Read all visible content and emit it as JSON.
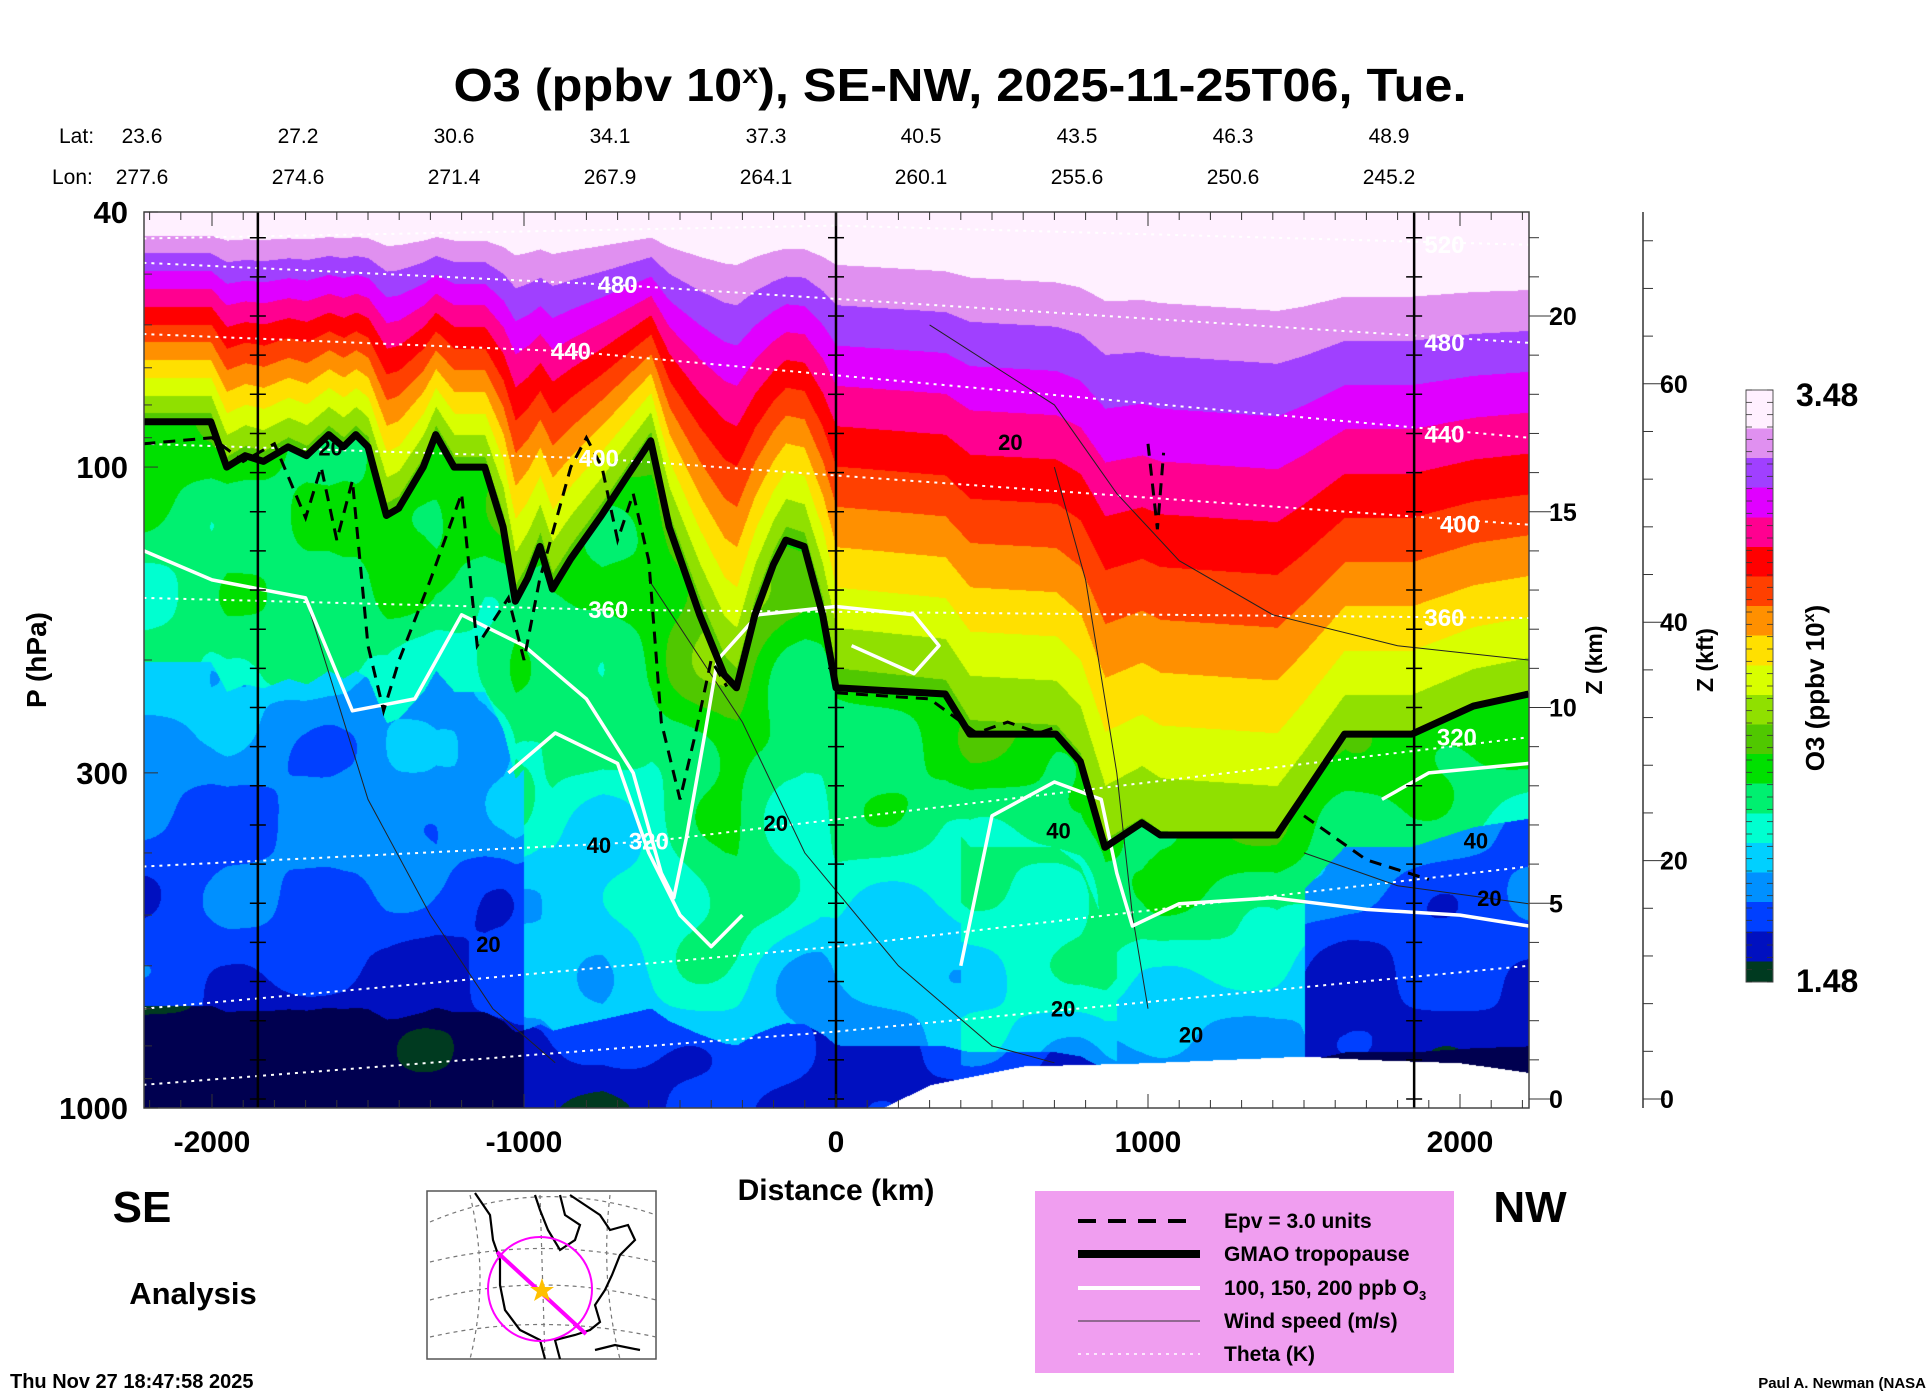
{
  "chart_data": {
    "type": "heatmap",
    "title_main": "O3 (ppbv 10",
    "title_sup": "x",
    "title_rest": "), SE-NW, 2025-11-25T06, Tue.",
    "lat_label": "Lat:",
    "lon_label": "Lon:",
    "lat": [
      "23.6",
      "27.2",
      "30.6",
      "34.1",
      "37.3",
      "40.5",
      "43.5",
      "46.3",
      "48.9"
    ],
    "lon": [
      "277.6",
      "274.6",
      "271.4",
      "267.9",
      "264.1",
      "260.1",
      "255.6",
      "250.6",
      "245.2"
    ],
    "xlabel": "Distance (km)",
    "ylabel": "P (hPa)",
    "xlim": [
      -2220,
      2220
    ],
    "ylim": [
      40,
      1000
    ],
    "xticks": [
      -2000,
      -1000,
      0,
      1000,
      2000
    ],
    "xtick_labels": [
      "-2000",
      "-1000",
      "0",
      "1000",
      "2000"
    ],
    "yticks": [
      40,
      100,
      300,
      1000
    ],
    "ytick_labels": [
      "40",
      "100",
      "300",
      "1000"
    ],
    "z_km_label": "Z (km)",
    "z_km_ticks": [
      "0",
      "5",
      "10",
      "15",
      "20"
    ],
    "z_kft_label": "Z (kft)",
    "z_kft_ticks": [
      "0",
      "20",
      "40",
      "60"
    ],
    "colorbar": {
      "label_main": "O3 (ppbv 10",
      "label_sup": "x",
      "label_end": ")",
      "min": 1.48,
      "max": 3.48,
      "min_label": "1.48",
      "max_label": "3.48",
      "stops": [
        [
          1.48,
          "#000050"
        ],
        [
          1.55,
          "#003a20"
        ],
        [
          1.65,
          "#0010c0"
        ],
        [
          1.75,
          "#0040ff"
        ],
        [
          1.85,
          "#0090ff"
        ],
        [
          1.95,
          "#00d0ff"
        ],
        [
          2.05,
          "#00ffd0"
        ],
        [
          2.15,
          "#00f070"
        ],
        [
          2.25,
          "#00e000"
        ],
        [
          2.35,
          "#50c800"
        ],
        [
          2.45,
          "#90e000"
        ],
        [
          2.55,
          "#d8ff00"
        ],
        [
          2.65,
          "#ffe000"
        ],
        [
          2.75,
          "#ff9000"
        ],
        [
          2.85,
          "#ff4000"
        ],
        [
          2.95,
          "#ff0000"
        ],
        [
          3.05,
          "#ff0090"
        ],
        [
          3.15,
          "#e000ff"
        ],
        [
          3.25,
          "#a040ff"
        ],
        [
          3.35,
          "#e090f0"
        ],
        [
          3.48,
          "#fff0ff"
        ]
      ]
    },
    "section_lines_km": [
      -1853,
      0,
      1853
    ],
    "tropopause": [
      [
        -2220,
        85
      ],
      [
        -2004,
        85
      ],
      [
        -1953,
        100
      ],
      [
        -1894,
        96
      ],
      [
        -1835,
        98
      ],
      [
        -1756,
        93
      ],
      [
        -1697,
        96
      ],
      [
        -1626,
        89
      ],
      [
        -1579,
        93
      ],
      [
        -1539,
        89
      ],
      [
        -1500,
        93
      ],
      [
        -1441,
        119
      ],
      [
        -1402,
        116
      ],
      [
        -1323,
        100
      ],
      [
        -1283,
        89
      ],
      [
        -1224,
        100
      ],
      [
        -1126,
        100
      ],
      [
        -1067,
        124
      ],
      [
        -1028,
        162
      ],
      [
        -988,
        149
      ],
      [
        -949,
        133
      ],
      [
        -909,
        155
      ],
      [
        -850,
        139
      ],
      [
        -752,
        119
      ],
      [
        -673,
        104
      ],
      [
        -594,
        91
      ],
      [
        -535,
        124
      ],
      [
        -437,
        170
      ],
      [
        -358,
        211
      ],
      [
        -319,
        221
      ],
      [
        -260,
        170
      ],
      [
        -201,
        142
      ],
      [
        -161,
        130
      ],
      [
        -102,
        133
      ],
      [
        -43,
        170
      ],
      [
        0,
        221
      ],
      [
        350,
        226
      ],
      [
        429,
        261
      ],
      [
        705,
        261
      ],
      [
        783,
        288
      ],
      [
        862,
        392
      ],
      [
        980,
        359
      ],
      [
        1039,
        375
      ],
      [
        1256,
        375
      ],
      [
        1413,
        375
      ],
      [
        1492,
        329
      ],
      [
        1630,
        261
      ],
      [
        1846,
        261
      ],
      [
        2043,
        236
      ],
      [
        2220,
        226
      ]
    ],
    "surface_pressure": [
      [
        -2220,
        1000
      ],
      [
        150,
        1000
      ],
      [
        300,
        920
      ],
      [
        600,
        860
      ],
      [
        1000,
        850
      ],
      [
        1500,
        830
      ],
      [
        1700,
        840
      ],
      [
        2000,
        850
      ],
      [
        2220,
        880
      ]
    ],
    "epv_3pvu": [
      [
        [
          -2220,
          92
        ],
        [
          -2000,
          90
        ],
        [
          -1900,
          98
        ],
        [
          -1800,
          92
        ],
        [
          -1700,
          120
        ],
        [
          -1650,
          100
        ],
        [
          -1600,
          130
        ],
        [
          -1550,
          105
        ],
        [
          -1500,
          190
        ],
        [
          -1450,
          240
        ],
        [
          -1400,
          200
        ],
        [
          -1300,
          150
        ],
        [
          -1200,
          110
        ],
        [
          -1150,
          190
        ],
        [
          -1050,
          160
        ],
        [
          -1000,
          200
        ],
        [
          -950,
          150
        ],
        [
          -850,
          100
        ],
        [
          -800,
          90
        ],
        [
          -750,
          100
        ],
        [
          -700,
          130
        ],
        [
          -650,
          110
        ],
        [
          -600,
          140
        ],
        [
          -560,
          250
        ],
        [
          -500,
          330
        ],
        [
          -450,
          260
        ],
        [
          -400,
          200
        ],
        [
          -350,
          220
        ]
      ],
      [
        [
          0,
          225
        ],
        [
          300,
          230
        ],
        [
          450,
          260
        ],
        [
          550,
          250
        ],
        [
          650,
          260
        ],
        [
          700,
          255
        ]
      ],
      [
        [
          1000,
          92
        ],
        [
          1030,
          125
        ],
        [
          1050,
          95
        ]
      ],
      [
        [
          1500,
          350
        ],
        [
          1700,
          410
        ],
        [
          1900,
          440
        ]
      ]
    ],
    "o3_contours": [
      [
        [
          -2220,
          135
        ],
        [
          -2000,
          150
        ],
        [
          -1700,
          160
        ],
        [
          -1550,
          240
        ],
        [
          -1350,
          230
        ],
        [
          -1200,
          170
        ],
        [
          -1000,
          190
        ],
        [
          -800,
          230
        ],
        [
          -650,
          300
        ],
        [
          -560,
          430
        ],
        [
          -520,
          470
        ],
        [
          -480,
          380
        ],
        [
          -420,
          260
        ],
        [
          -380,
          200
        ],
        [
          -250,
          170
        ],
        [
          0,
          165
        ],
        [
          250,
          170
        ],
        [
          330,
          190
        ],
        [
          250,
          210
        ],
        [
          50,
          190
        ]
      ],
      [
        [
          -1050,
          300
        ],
        [
          -900,
          260
        ],
        [
          -700,
          290
        ],
        [
          -600,
          400
        ],
        [
          -500,
          500
        ],
        [
          -400,
          560
        ],
        [
          -300,
          500
        ]
      ],
      [
        [
          400,
          600
        ],
        [
          500,
          350
        ],
        [
          700,
          310
        ],
        [
          850,
          330
        ],
        [
          900,
          430
        ],
        [
          950,
          520
        ],
        [
          1100,
          480
        ],
        [
          1400,
          470
        ],
        [
          1700,
          490
        ],
        [
          2000,
          500
        ],
        [
          2220,
          520
        ]
      ],
      [
        [
          1750,
          330
        ],
        [
          1900,
          300
        ],
        [
          2220,
          290
        ]
      ]
    ],
    "wind_contours": [
      [
        [
          -1700,
          160
        ],
        [
          -1500,
          330
        ],
        [
          -1300,
          500
        ],
        [
          -1100,
          700
        ],
        [
          -900,
          850
        ]
      ],
      [
        [
          -600,
          150
        ],
        [
          -300,
          250
        ],
        [
          -100,
          400
        ],
        [
          200,
          600
        ],
        [
          500,
          800
        ],
        [
          700,
          850
        ]
      ],
      [
        [
          300,
          60
        ],
        [
          700,
          80
        ],
        [
          900,
          110
        ],
        [
          1100,
          140
        ],
        [
          1400,
          170
        ],
        [
          1800,
          190
        ],
        [
          2220,
          200
        ]
      ],
      [
        [
          700,
          100
        ],
        [
          800,
          150
        ],
        [
          900,
          300
        ],
        [
          950,
          500
        ],
        [
          1000,
          700
        ]
      ],
      [
        [
          1500,
          400
        ],
        [
          1800,
          450
        ],
        [
          2220,
          480
        ]
      ]
    ],
    "wind_labels": [
      {
        "text": "20",
        "d": -1620,
        "p": 96
      },
      {
        "text": "20",
        "d": -1114,
        "p": 571
      },
      {
        "text": "40",
        "d": -760,
        "p": 400
      },
      {
        "text": "20",
        "d": -193,
        "p": 370
      },
      {
        "text": "20",
        "d": 559,
        "p": 94
      },
      {
        "text": "40",
        "d": 713,
        "p": 380
      },
      {
        "text": "20",
        "d": 728,
        "p": 720
      },
      {
        "text": "20",
        "d": 1138,
        "p": 790
      },
      {
        "text": "40",
        "d": 2051,
        "p": 394
      },
      {
        "text": "20",
        "d": 2094,
        "p": 484
      }
    ],
    "theta": [
      {
        "label": "520",
        "points": [
          [
            -2220,
            44
          ],
          [
            0,
            42
          ],
          [
            2220,
            45
          ]
        ],
        "label_at": [
          1950,
          45
        ]
      },
      {
        "label": "480",
        "points": [
          [
            -2220,
            48
          ],
          [
            -700,
            52
          ],
          [
            2220,
            64
          ]
        ],
        "label_at": [
          -700,
          52
        ]
      },
      {
        "label": "440",
        "points": [
          [
            -2220,
            62
          ],
          [
            -850,
            66
          ],
          [
            2220,
            90
          ]
        ],
        "label_at": [
          -850,
          66
        ]
      },
      {
        "label": "400",
        "points": [
          [
            -2220,
            92
          ],
          [
            -760,
            97
          ],
          [
            2220,
            123
          ]
        ],
        "label_at": [
          -760,
          97
        ]
      },
      {
        "label": "360",
        "points": [
          [
            -2220,
            160
          ],
          [
            -730,
            167
          ],
          [
            2220,
            172
          ]
        ],
        "label_at": [
          -730,
          167
        ]
      },
      {
        "label": "320",
        "points": [
          [
            -2220,
            420
          ],
          [
            -600,
            384
          ],
          [
            2220,
            264
          ]
        ],
        "label_at": [
          -600,
          384
        ]
      },
      {
        "label": "",
        "points": [
          [
            -2220,
            700
          ],
          [
            0,
            560
          ],
          [
            2220,
            420
          ]
        ],
        "label_at": null
      },
      {
        "label": "",
        "points": [
          [
            -2220,
            920
          ],
          [
            0,
            760
          ],
          [
            2220,
            600
          ]
        ],
        "label_at": null
      }
    ],
    "theta_right_labels": [
      {
        "text": "520",
        "d": 1950,
        "p": 45
      },
      {
        "text": "480",
        "d": 1950,
        "p": 64
      },
      {
        "text": "440",
        "d": 1950,
        "p": 89
      },
      {
        "text": "400",
        "d": 2000,
        "p": 123
      },
      {
        "text": "360",
        "d": 1950,
        "p": 172
      },
      {
        "text": "320",
        "d": 1990,
        "p": 264
      }
    ]
  },
  "labels": {
    "se": "SE",
    "nw": "NW",
    "analysis": "Analysis",
    "timestamp": "Thu Nov 27 18:47:58 2025",
    "credit": "Paul A. Newman (NASA"
  },
  "legend": {
    "bg": "#f09ef0",
    "items": [
      {
        "label": "Epv = 3.0 units",
        "style": "dashed"
      },
      {
        "label": "GMAO tropopause",
        "style": "thick"
      },
      {
        "label": "100, 150, 200 ppb O",
        "sub": "3",
        "style": "white"
      },
      {
        "label": "Wind speed (m/s)",
        "style": "thin"
      },
      {
        "label": "Theta (K)",
        "style": "dotted"
      }
    ]
  }
}
